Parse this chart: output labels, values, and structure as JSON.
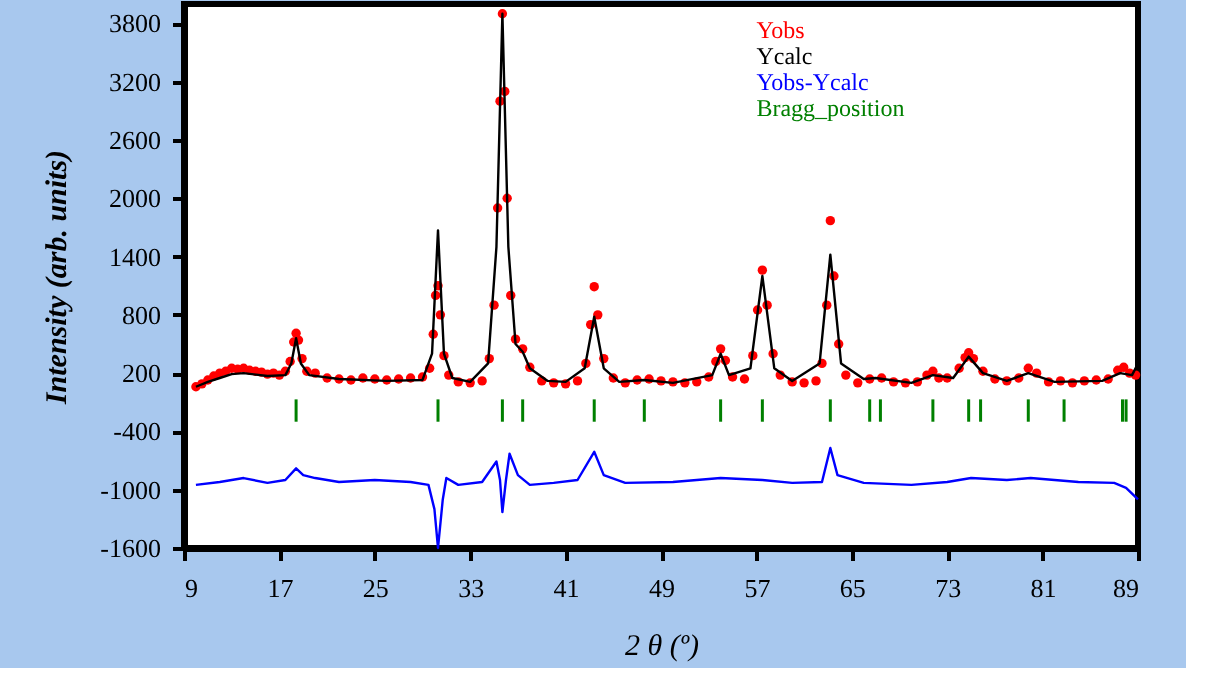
{
  "chart_data": {
    "type": "scatter",
    "xlabel": "2 θ (º)",
    "ylabel": "Intensity (arb. units)",
    "xlim": [
      9,
      89
    ],
    "ylim": [
      -1600,
      4000
    ],
    "xticks": [
      9,
      17,
      25,
      33,
      41,
      49,
      57,
      65,
      73,
      81,
      89
    ],
    "yticks": [
      -1600,
      -1000,
      -400,
      200,
      800,
      1400,
      2000,
      2600,
      3200,
      3800
    ],
    "legend": "top right",
    "grid": false,
    "series": [
      {
        "name": "Yobs",
        "marker": "circle",
        "color": "#ff0000",
        "x": [
          10,
          10.5,
          11,
          11.5,
          12,
          12.5,
          13,
          13.5,
          14,
          14.5,
          15,
          15.5,
          16,
          16.5,
          17,
          17.5,
          17.9,
          18.2,
          18.4,
          18.6,
          18.9,
          19.3,
          20,
          21,
          22,
          23,
          24,
          25,
          26,
          27,
          28,
          29,
          29.6,
          29.9,
          30.1,
          30.3,
          30.5,
          30.8,
          31.2,
          32,
          33,
          34,
          34.6,
          35.0,
          35.3,
          35.5,
          35.7,
          35.9,
          36.1,
          36.4,
          36.8,
          37.4,
          38,
          39,
          40,
          41,
          42,
          42.7,
          43.1,
          43.4,
          43.7,
          44.2,
          45,
          46,
          47,
          48,
          49,
          50,
          51,
          52,
          53,
          53.6,
          54.0,
          54.4,
          55,
          56,
          56.7,
          57.1,
          57.5,
          57.9,
          58.4,
          59,
          60,
          61,
          62,
          62.5,
          62.9,
          63.2,
          63.5,
          63.9,
          64.5,
          65.5,
          66.5,
          67.5,
          68.5,
          69.5,
          70.5,
          71.3,
          71.8,
          72.3,
          73,
          74,
          74.5,
          74.8,
          75.2,
          76,
          77,
          78,
          79,
          79.8,
          80.5,
          81.5,
          82.5,
          83.5,
          84.5,
          85.5,
          86.5,
          87.3,
          87.8,
          88.3,
          88.8
        ],
        "values": [
          60,
          90,
          130,
          170,
          200,
          220,
          250,
          240,
          250,
          230,
          220,
          210,
          190,
          200,
          180,
          220,
          320,
          520,
          610,
          540,
          350,
          220,
          200,
          150,
          140,
          130,
          150,
          140,
          130,
          140,
          150,
          160,
          250,
          600,
          1000,
          1100,
          800,
          380,
          180,
          110,
          100,
          120,
          350,
          900,
          1900,
          3000,
          3900,
          3100,
          2000,
          1000,
          550,
          450,
          260,
          120,
          100,
          90,
          120,
          300,
          700,
          1090,
          800,
          350,
          150,
          100,
          130,
          140,
          120,
          110,
          100,
          110,
          160,
          320,
          450,
          330,
          160,
          140,
          380,
          850,
          1260,
          900,
          400,
          180,
          110,
          100,
          120,
          300,
          900,
          1770,
          1200,
          500,
          180,
          100,
          140,
          150,
          110,
          100,
          110,
          180,
          220,
          150,
          150,
          250,
          360,
          410,
          350,
          220,
          140,
          120,
          150,
          250,
          200,
          110,
          120,
          100,
          120,
          130,
          140,
          230,
          260,
          200,
          180
        ]
      },
      {
        "name": "Ycalc",
        "type": "line",
        "color": "#000000",
        "x": [
          10,
          11,
          12,
          13,
          14,
          16,
          17.5,
          18.0,
          18.4,
          18.8,
          19.5,
          22,
          26,
          29,
          29.8,
          30.3,
          30.8,
          31.5,
          33,
          34.5,
          35.2,
          35.7,
          36.2,
          36.8,
          37.4,
          38,
          39.5,
          41,
          42.6,
          43.4,
          44.2,
          45.5,
          47.6,
          50,
          53.3,
          54.0,
          54.7,
          56.5,
          57.5,
          58.5,
          60,
          62.3,
          63.2,
          64.1,
          66,
          67,
          70,
          71.8,
          73.5,
          74.8,
          76,
          78,
          79.8,
          82,
          86,
          87.5,
          88.5,
          89
        ],
        "values": [
          60,
          110,
          150,
          190,
          200,
          170,
          180,
          300,
          560,
          300,
          180,
          140,
          120,
          130,
          400,
          1670,
          400,
          150,
          110,
          300,
          1500,
          3900,
          1500,
          500,
          420,
          250,
          120,
          110,
          250,
          780,
          250,
          110,
          130,
          100,
          180,
          400,
          180,
          250,
          1200,
          250,
          120,
          300,
          1420,
          300,
          140,
          150,
          100,
          180,
          150,
          370,
          200,
          120,
          200,
          110,
          120,
          200,
          180,
          300
        ]
      },
      {
        "name": "Yobs-Ycalc",
        "type": "line",
        "color": "#0000ff",
        "x": [
          10,
          12,
          14,
          16,
          17.5,
          18.4,
          19,
          20,
          22,
          25,
          28,
          29.5,
          30,
          30.3,
          30.7,
          31,
          32,
          34,
          35.2,
          35.5,
          35.7,
          36.0,
          36.3,
          37,
          38,
          40,
          42,
          43.4,
          44.2,
          46,
          50,
          54,
          57.5,
          60,
          62.5,
          63.2,
          63.8,
          66,
          70,
          73,
          75,
          78,
          80,
          84,
          87,
          88,
          89
        ],
        "values": [
          -950,
          -920,
          -880,
          -930,
          -900,
          -780,
          -850,
          -880,
          -920,
          -900,
          -920,
          -950,
          -1200,
          -1600,
          -1100,
          -880,
          -950,
          -920,
          -710,
          -900,
          -1230,
          -900,
          -630,
          -850,
          -950,
          -930,
          -900,
          -610,
          -850,
          -930,
          -920,
          -880,
          -900,
          -930,
          -920,
          -570,
          -850,
          -930,
          -950,
          -920,
          -880,
          -900,
          -880,
          -920,
          -930,
          -980,
          -1100
        ]
      },
      {
        "name": "Bragg_position",
        "type": "bar",
        "color": "#008000",
        "base": [
          -300,
          -300,
          -300,
          -300,
          -300,
          -300,
          -300,
          -300,
          -300,
          -300,
          -300,
          -300,
          -300,
          -300,
          -300,
          -300,
          -300,
          -300
        ],
        "x": [
          18.4,
          30.3,
          35.7,
          37.4,
          43.4,
          47.6,
          54.0,
          57.5,
          63.2,
          66.5,
          67.4,
          71.8,
          74.8,
          75.8,
          79.8,
          82.8,
          87.7,
          88.0
        ],
        "values": [
          230,
          230,
          230,
          230,
          230,
          230,
          230,
          230,
          230,
          230,
          230,
          230,
          230,
          230,
          230,
          230,
          230,
          230
        ]
      }
    ]
  }
}
